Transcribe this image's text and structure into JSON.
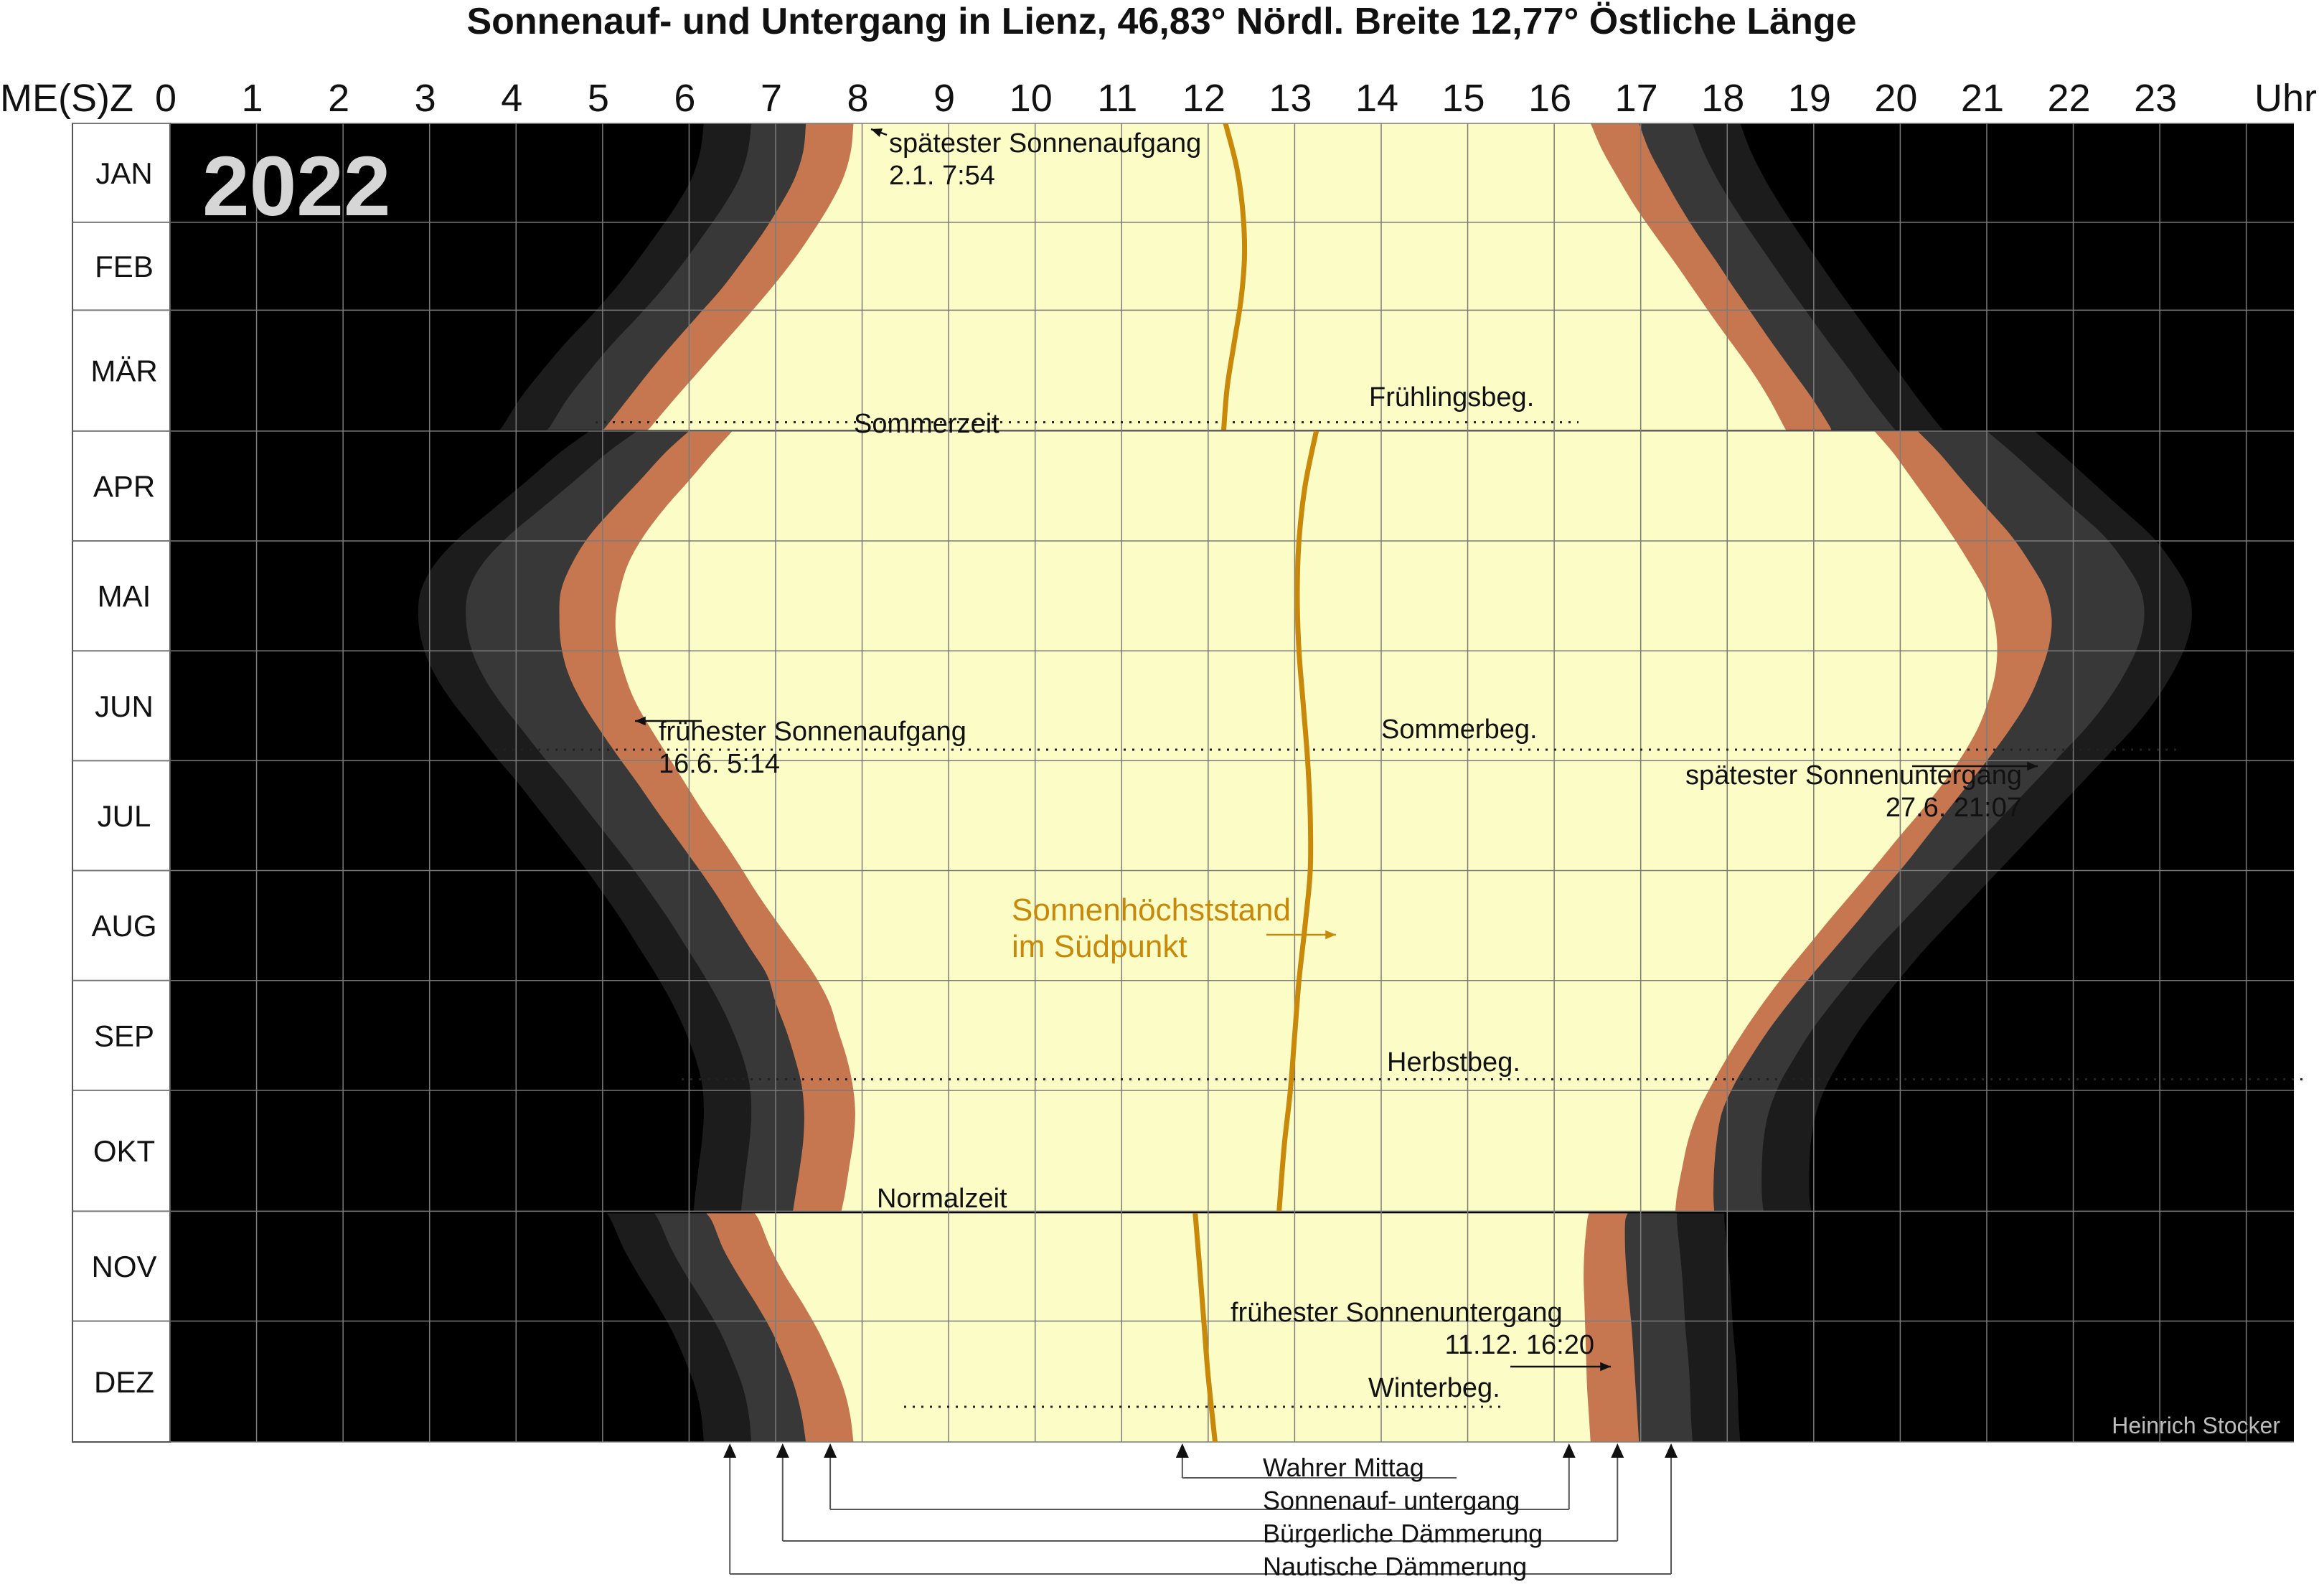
{
  "chart_data": {
    "type": "area",
    "title": "Sonnenauf- und Untergang in Lienz, 46,83° Nördl. Breite 12,77° Östliche Länge",
    "year": "2022",
    "x_axis_left_label": "ME(S)Z",
    "x_axis_right_label": "Uhr",
    "x_ticks": [
      "0",
      "1",
      "2",
      "3",
      "4",
      "5",
      "6",
      "7",
      "8",
      "9",
      "10",
      "11",
      "12",
      "13",
      "14",
      "15",
      "16",
      "17",
      "18",
      "19",
      "20",
      "21",
      "22",
      "23"
    ],
    "xlim": [
      0,
      24
    ],
    "months": [
      "JAN",
      "FEB",
      "MÄR",
      "APR",
      "MAI",
      "JUN",
      "JUL",
      "AUG",
      "SEP",
      "OKT",
      "NOV",
      "DEZ"
    ],
    "colors": {
      "night": "#000000",
      "nautical": "#1c1c1c",
      "astronomical": "#383838",
      "civil": "#c7774f",
      "day": "#fcfcc6",
      "noon": "#c8880a",
      "grid": "#7a7a7a"
    },
    "x_unit": "hours local clock time",
    "y_unit": "month (fractional)",
    "month_fraction": [
      0.0,
      0.25,
      0.5,
      0.75,
      1.0,
      1.25,
      1.5,
      1.75,
      2.0,
      2.25,
      2.5,
      2.75,
      2.79,
      2.8,
      3.0,
      3.25,
      3.5,
      3.75,
      4.0,
      4.25,
      4.5,
      4.75,
      5.0,
      5.25,
      5.5,
      5.75,
      6.0,
      6.25,
      6.5,
      6.75,
      7.0,
      7.25,
      7.5,
      7.75,
      8.0,
      8.25,
      8.5,
      8.75,
      9.0,
      9.25,
      9.5,
      9.75,
      9.9,
      9.92,
      10.0,
      10.25,
      10.5,
      10.75,
      11.0,
      11.25,
      11.5,
      11.75,
      12.0
    ],
    "series": [
      {
        "key": "sunrise",
        "name": "Sonnenauf- untergang",
        "values": [
          7.9,
          7.87,
          7.78,
          7.62,
          7.42,
          7.2,
          6.95,
          6.68,
          6.4,
          6.12,
          5.84,
          5.57,
          5.52,
          6.5,
          6.27,
          6.0,
          5.72,
          5.48,
          5.3,
          5.2,
          5.15,
          5.17,
          5.25,
          5.37,
          5.55,
          5.75,
          5.95,
          6.15,
          6.37,
          6.58,
          6.78,
          7.0,
          7.23,
          7.45,
          7.62,
          7.72,
          7.82,
          7.89,
          7.92
        ]
      },
      {
        "key": "sunset",
        "name": "Sonnenauf- untergang",
        "values": [
          16.42,
          16.56,
          16.74,
          16.93,
          17.15,
          17.38,
          17.6,
          17.82,
          18.05,
          18.28,
          18.48,
          18.65,
          18.68,
          19.7,
          19.92,
          20.15,
          20.38,
          20.6,
          20.8,
          20.98,
          21.08,
          21.12,
          21.1,
          21.02,
          20.9,
          20.72,
          20.5,
          20.25,
          19.98,
          19.72,
          19.45,
          19.18,
          18.92,
          18.66,
          17.4,
          17.17,
          16.93,
          16.72,
          16.57,
          16.46,
          16.38,
          16.35,
          16.36,
          16.38,
          16.42,
          16.5
        ]
      },
      {
        "key": "civil_dawn",
        "name": "Bürgerliche Dämmerung",
        "values": [
          7.35,
          7.32,
          7.22,
          7.05,
          6.85,
          6.62,
          6.38,
          6.1,
          5.82,
          5.55,
          5.3,
          5.05,
          5.0,
          6.0,
          5.72,
          5.43,
          5.13,
          4.85,
          4.65,
          4.52,
          4.5,
          4.52,
          4.6,
          4.75,
          4.95,
          5.17,
          5.4,
          5.62,
          5.85,
          6.08,
          6.3,
          6.5,
          6.7,
          6.9,
          7.0,
          7.12,
          7.22,
          7.3,
          7.33
        ]
      },
      {
        "key": "civil_dusk",
        "name": "Bürgerliche Dämmerung",
        "values": [
          16.98,
          17.1,
          17.27,
          17.45,
          17.65,
          17.87,
          18.08,
          18.3,
          18.52,
          18.75,
          18.98,
          19.18,
          19.2,
          20.2,
          20.45,
          20.72,
          21.0,
          21.28,
          21.5,
          21.68,
          21.75,
          21.72,
          21.62,
          21.48,
          21.28,
          21.05,
          20.8,
          20.55,
          20.3,
          20.05,
          19.78,
          19.52,
          19.25,
          18.98,
          17.92,
          17.68,
          17.45,
          17.25,
          17.08,
          16.98,
          16.93,
          16.93,
          16.95,
          16.96,
          16.98
        ]
      },
      {
        "key": "nautical_dawn",
        "name": "Nautische Dämmerung",
        "values": [
          6.72,
          6.68,
          6.58,
          6.4,
          6.18,
          5.95,
          5.7,
          5.42,
          5.12,
          4.85,
          4.6,
          4.4,
          4.35,
          5.4,
          5.05,
          4.68,
          4.3,
          3.92,
          3.62,
          3.45,
          3.42,
          3.47,
          3.6,
          3.8,
          4.05,
          4.3,
          4.57,
          4.82,
          5.07,
          5.32,
          5.55,
          5.77,
          5.97,
          6.17,
          6.42,
          6.55,
          6.65,
          6.7,
          6.72
        ]
      },
      {
        "key": "nautical_dusk",
        "name": "Nautische Dämmerung",
        "values": [
          17.6,
          17.72,
          17.88,
          18.07,
          18.28,
          18.5,
          18.72,
          18.95,
          19.18,
          19.42,
          19.65,
          19.9,
          19.95,
          21.0,
          21.3,
          21.65,
          22.0,
          22.35,
          22.6,
          22.78,
          22.82,
          22.75,
          22.6,
          22.4,
          22.15,
          21.85,
          21.55,
          21.25,
          20.95,
          20.65,
          20.35,
          20.05,
          19.75,
          19.48,
          18.25,
          17.98,
          17.75,
          17.58,
          17.52,
          17.55,
          17.6,
          17.62,
          17.65
        ]
      },
      {
        "key": "noon",
        "name": "Wahrer Mittag",
        "values": [
          12.2,
          12.33,
          12.4,
          12.42,
          12.38,
          12.3,
          12.22,
          12.18,
          13.25,
          13.12,
          13.05,
          13.03,
          13.05,
          13.1,
          13.15,
          13.18,
          13.18,
          13.12,
          13.05,
          13.0,
          12.95,
          12.88,
          12.85,
          12.82,
          11.85,
          11.9,
          11.95,
          12.0,
          12.08
        ]
      }
    ],
    "dst_labels": {
      "start": "Sommerzeit",
      "end": "Normalzeit"
    },
    "season_labels": [
      "Frühlingsbeg.",
      "Sommerbeg.",
      "Herbstbeg.",
      "Winterbeg."
    ],
    "annotations": {
      "latest_sunrise": {
        "line1": "spätester Sonnenaufgang",
        "line2": "2.1. 7:54"
      },
      "earliest_sunrise": {
        "line1": "frühester Sonnenaufgang",
        "line2": "16.6. 5:14"
      },
      "latest_sunset": {
        "line1": "spätester Sonnenuntergang",
        "line2": "27.6. 21:07"
      },
      "earliest_sunset": {
        "line1": "frühester Sonnenuntergang",
        "line2": "11.12. 16:20"
      },
      "noon_label": {
        "line1": "Sonnenhöchststand",
        "line2": "im Südpunkt"
      }
    },
    "legend": [
      "Wahrer Mittag",
      "Sonnenauf- untergang",
      "Bürgerliche Dämmerung",
      "Nautische Dämmerung"
    ],
    "credit": "Heinrich Stocker"
  }
}
